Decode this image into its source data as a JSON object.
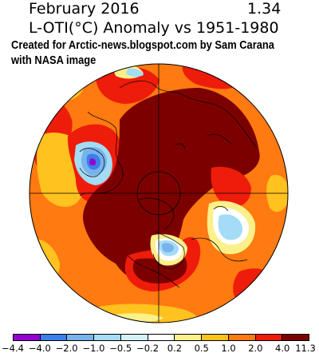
{
  "header": {
    "date": "February 2016",
    "global_mean": "1.34",
    "title": "L-OTI(°C) Anomaly vs 1951-1980"
  },
  "credit": {
    "line1": "Created for Arctic-news.blogspot.com by Sam Carana",
    "line2": "with NASA image"
  },
  "legend": {
    "ticks": [
      "−4.4",
      "−4.0",
      "−2.0",
      "−1.0",
      "−0.5",
      "−0.2",
      "0.2",
      "0.5",
      "1.0",
      "2.0",
      "4.0",
      "11.3"
    ],
    "colors": [
      "#9400d3",
      "#3d7fe8",
      "#78b3ec",
      "#a3dcf4",
      "#d2f2f8",
      "#ffffff",
      "#fbf08a",
      "#ffc21f",
      "#ff7a10",
      "#ee1c0a",
      "#7c0000"
    ]
  },
  "map": {
    "projection": "north polar stereographic",
    "colors": {
      "background": "#ff7a10",
      "strong_warm": "#7c0000",
      "warm": "#ee1c0a",
      "mild": "#ffc21f",
      "slight": "#fbf08a",
      "cool": "#a3dcf4",
      "cold": "#78b3ec",
      "colder": "#3d7fe8",
      "coldest": "#9400d3",
      "neutral": "#ffffff"
    }
  }
}
